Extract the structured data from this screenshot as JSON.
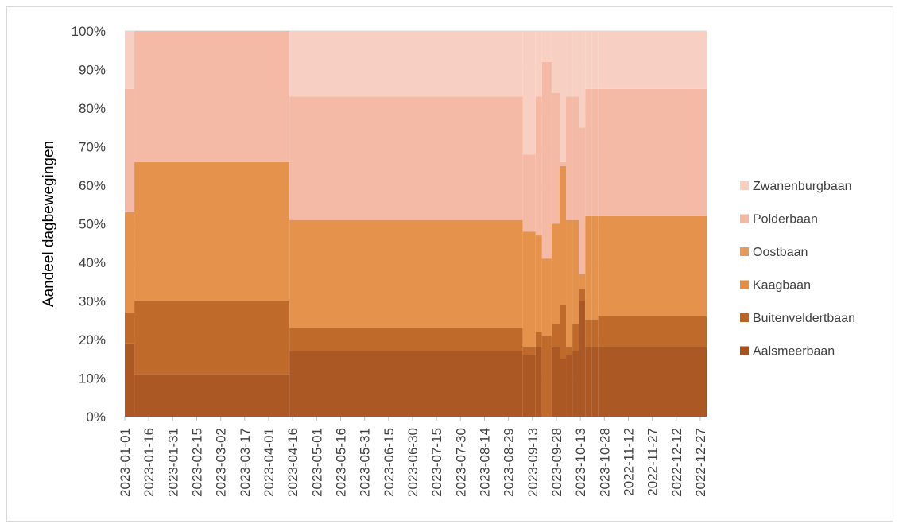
{
  "chart_data": {
    "type": "area",
    "stacked": "percent",
    "ylabel": "Aandeel dagbewegingen",
    "xlabel": "",
    "ylim": [
      0,
      100
    ],
    "y_ticks": [
      "0%",
      "10%",
      "20%",
      "30%",
      "40%",
      "50%",
      "60%",
      "70%",
      "80%",
      "90%",
      "100%"
    ],
    "x_tick_labels": [
      "2023-01-01",
      "2023-01-16",
      "2023-01-31",
      "2023-02-15",
      "2023-03-02",
      "2023-03-17",
      "2023-04-01",
      "2023-04-16",
      "2023-05-01",
      "2023-05-16",
      "2023-05-31",
      "2023-06-15",
      "2023-06-30",
      "2023-07-15",
      "2023-07-30",
      "2023-08-14",
      "2023-08-29",
      "2023-09-13",
      "2023-09-28",
      "2023-10-13",
      "2023-10-28",
      "2022-11-12",
      "2022-11-27",
      "2022-12-12",
      "2022-12-27"
    ],
    "grid": true,
    "legend_position": "right",
    "x_breakpoints": [
      "2023-01-01",
      "2023-01-07",
      "2023-04-14",
      "2023-09-07",
      "2023-09-15",
      "2023-09-19",
      "2023-09-25",
      "2023-09-30",
      "2023-10-04",
      "2023-10-08",
      "2023-10-12",
      "2023-10-16",
      "2023-10-20",
      "2023-10-24",
      "2023-12-31"
    ],
    "series": [
      {
        "name": "Aalsmeerbaan",
        "color": "#a9511c",
        "values": [
          19,
          11,
          17,
          16,
          18,
          0,
          18,
          15,
          16,
          17,
          30,
          18,
          18,
          18
        ]
      },
      {
        "name": "Buitenveldertbaan",
        "color": "#bd6423",
        "values": [
          8,
          19,
          6,
          2,
          4,
          21,
          6,
          14,
          2,
          7,
          3,
          7,
          7,
          8
        ]
      },
      {
        "name": "Kaagbaan",
        "color": "#e48e45",
        "values": [
          26,
          36,
          28,
          30,
          25,
          20,
          26,
          36,
          33,
          27,
          4,
          27,
          27,
          26
        ]
      },
      {
        "name": "Oostbaan",
        "color": "#e79a5c",
        "values": [
          0,
          0,
          0,
          0,
          0,
          0,
          0,
          0,
          0,
          0,
          0,
          0,
          0,
          0
        ]
      },
      {
        "name": "Polderbaan",
        "color": "#f4b7a2",
        "values": [
          32,
          34,
          32,
          20,
          36,
          51,
          34,
          1,
          32,
          32,
          38,
          33,
          33,
          33
        ]
      },
      {
        "name": "Zwanenburgbaan",
        "color": "#f8cfc1",
        "values": [
          15,
          0,
          17,
          32,
          17,
          8,
          16,
          34,
          17,
          17,
          25,
          15,
          15,
          15
        ]
      }
    ]
  }
}
